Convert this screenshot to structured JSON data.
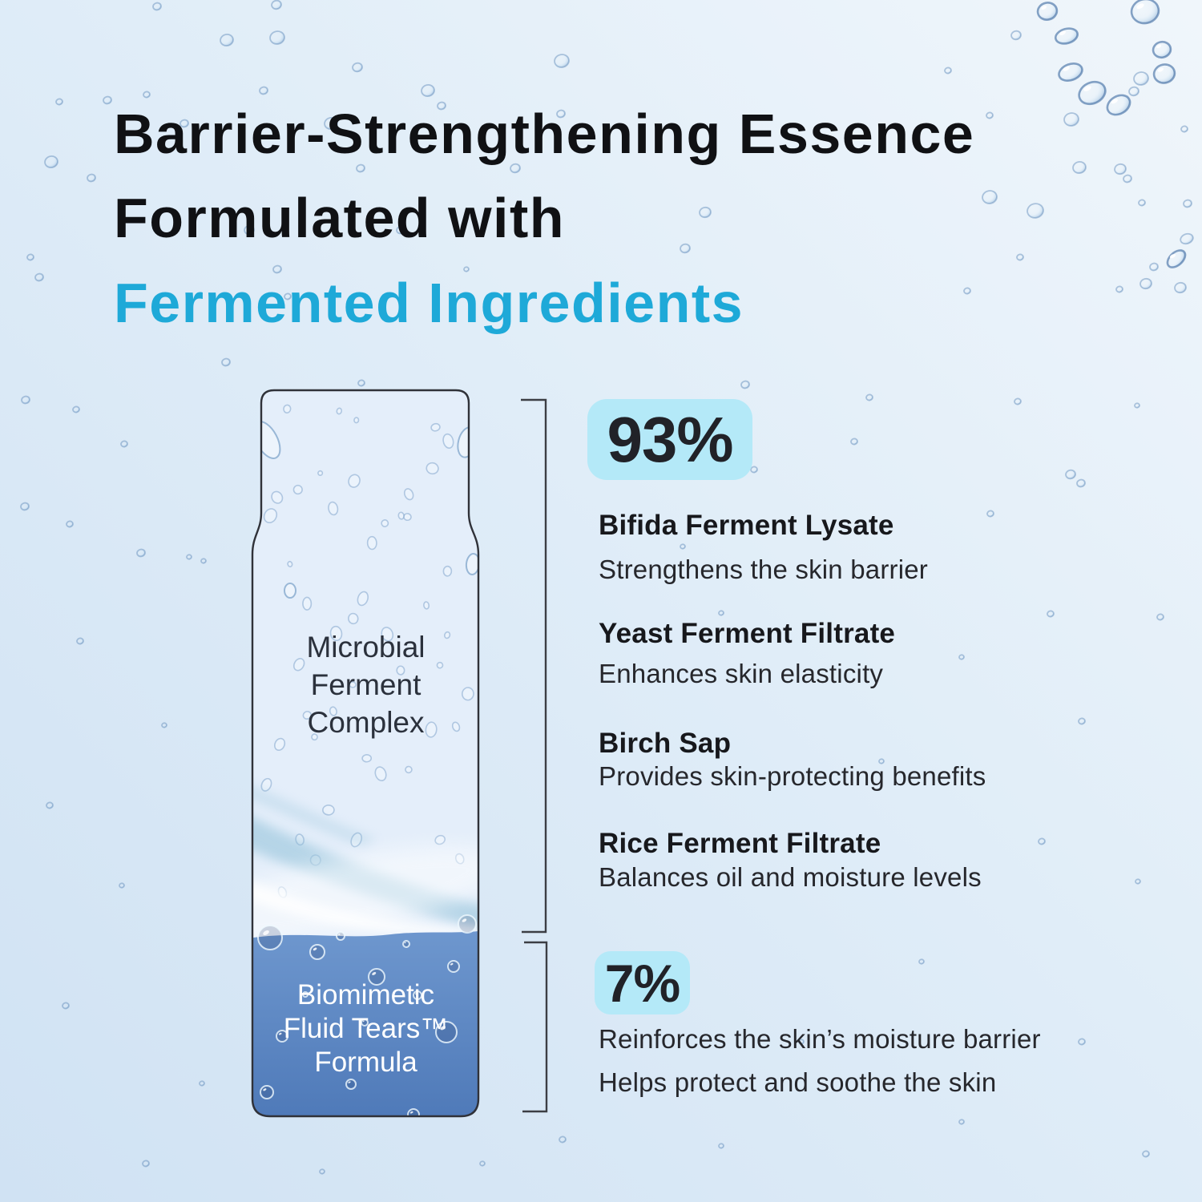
{
  "colors": {
    "accent": "#1ea9d8",
    "badge_bg": "#b4e9f8",
    "liquid_blue_top": "#6e97ce",
    "liquid_blue_bottom": "#4e79b8",
    "outline": "#303239"
  },
  "title": {
    "line1": "Barrier-Strengthening Essence",
    "line2": "Formulated with",
    "line3": "Fermented Ingredients"
  },
  "vial": {
    "upper_label": [
      "Microbial",
      "Ferment",
      "Complex"
    ],
    "lower_label": [
      "Biomimetic",
      "Fluid Tears™",
      "Formula"
    ]
  },
  "sections": {
    "main": {
      "percent": "93%",
      "ingredients": [
        {
          "name": "Bifida Ferment Lysate",
          "benefit": "Strengthens the skin barrier"
        },
        {
          "name": "Yeast Ferment Filtrate",
          "benefit": "Enhances skin elasticity"
        },
        {
          "name": "Birch Sap",
          "benefit": "Provides skin-protecting benefits"
        },
        {
          "name": "Rice Ferment Filtrate",
          "benefit": "Balances oil and moisture levels"
        }
      ]
    },
    "secondary": {
      "percent": "7%",
      "benefits": [
        "Reinforces the skin’s moisture barrier",
        "Helps protect and soothe the skin"
      ]
    }
  }
}
